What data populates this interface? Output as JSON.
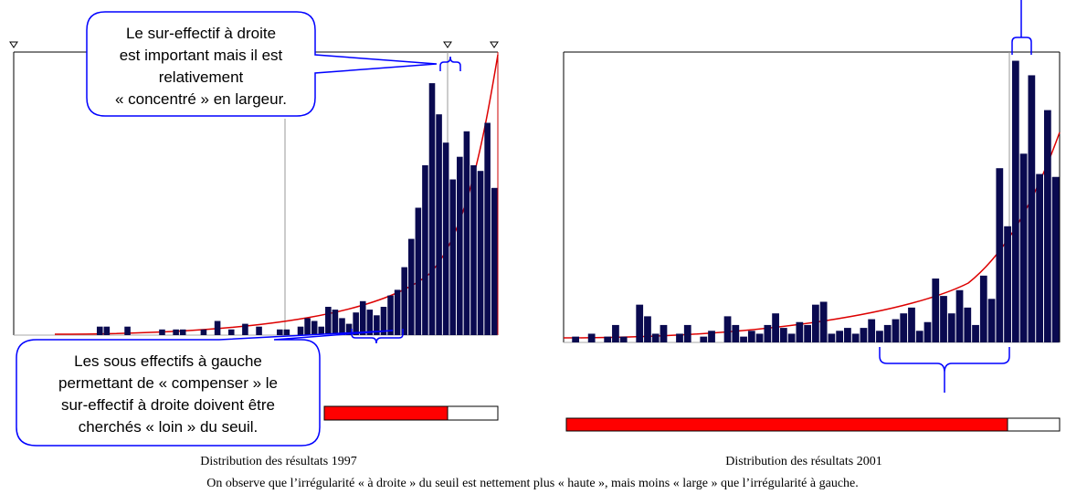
{
  "callouts": {
    "top": [
      "Le sur-effectif à droite",
      "est important mais il est",
      "relativement",
      "« concentré » en largeur."
    ],
    "bottom": [
      "Les sous effectifs à gauche",
      "permettant de « compenser » le",
      "sur-effectif à droite doivent être",
      "cherchés « loin » du seuil."
    ]
  },
  "figures": [
    {
      "caption": "Distribution des résultats 1997",
      "ylim": [
        0,
        100
      ],
      "values": [
        0,
        0,
        0,
        0,
        0,
        0,
        3,
        3,
        0,
        0,
        3,
        0,
        0,
        0,
        0,
        2,
        0,
        2,
        2,
        0,
        0,
        2,
        0,
        5,
        0,
        2,
        0,
        4,
        0,
        3,
        0,
        0,
        2,
        2,
        0,
        3,
        6,
        5,
        3,
        10,
        9,
        6,
        4,
        8,
        12,
        9,
        7,
        10,
        14,
        16,
        24,
        34,
        45,
        60,
        89,
        78,
        68,
        55,
        63,
        72,
        60,
        58,
        75,
        52
      ]
    },
    {
      "caption": "Distribution des résultats 2001",
      "ylim": [
        0,
        100
      ],
      "values": [
        0,
        2,
        0,
        3,
        0,
        2,
        6,
        2,
        0,
        13,
        9,
        3,
        6,
        0,
        3,
        6,
        0,
        2,
        4,
        0,
        9,
        6,
        2,
        4,
        3,
        6,
        10,
        5,
        3,
        7,
        6,
        13,
        14,
        3,
        4,
        5,
        3,
        5,
        8,
        4,
        6,
        8,
        10,
        12,
        4,
        7,
        22,
        16,
        10,
        18,
        12,
        6,
        23,
        15,
        60,
        40,
        97,
        65,
        92,
        58,
        80,
        57
      ]
    }
  ],
  "note": "On observe que l’irrégularité « à droite » du seuil est nettement plus « haute », mais moins « large » que l’irrégularité à gauche."
}
